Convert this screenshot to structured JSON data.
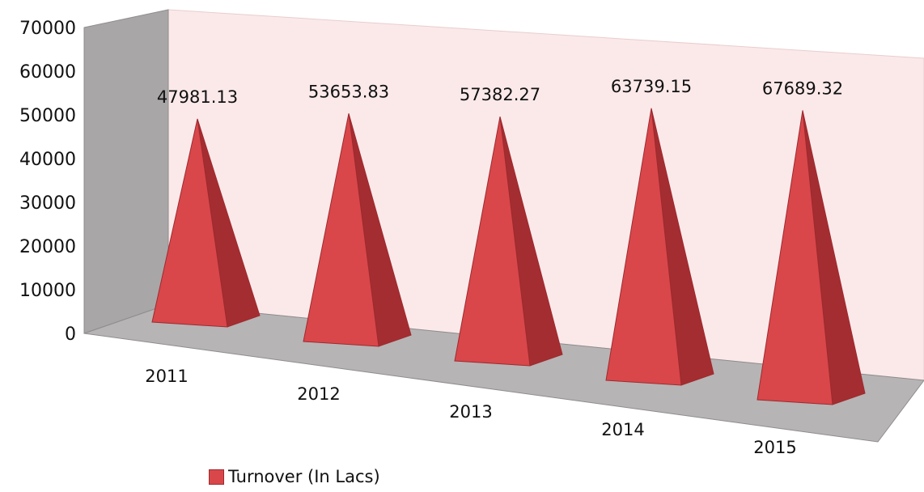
{
  "chart_data": {
    "type": "bar",
    "style": "3d-pyramid",
    "categories": [
      "2011",
      "2012",
      "2013",
      "2014",
      "2015"
    ],
    "series": [
      {
        "name": "Turnover (In Lacs)",
        "values": [
          47981.13,
          53653.83,
          57382.27,
          63739.15,
          67689.32
        ],
        "value_labels": [
          "47981.13",
          "53653.83",
          "57382.27",
          "63739.15",
          "67689.32"
        ]
      }
    ],
    "ylim": [
      0,
      70000
    ],
    "yticks": [
      0,
      10000,
      20000,
      30000,
      40000,
      50000,
      60000,
      70000
    ],
    "ytick_labels": [
      "0",
      "10000",
      "20000",
      "30000",
      "40000",
      "50000",
      "60000",
      "70000"
    ],
    "legend": "bottom-left",
    "grid": false,
    "colors": {
      "front": "#d9474b",
      "side": "#a42d31",
      "edge": "#9e2a2e",
      "floor": "#b7b4b5",
      "back_wall": "#fbe9ea",
      "side_wall": "#a9a6a7"
    }
  }
}
